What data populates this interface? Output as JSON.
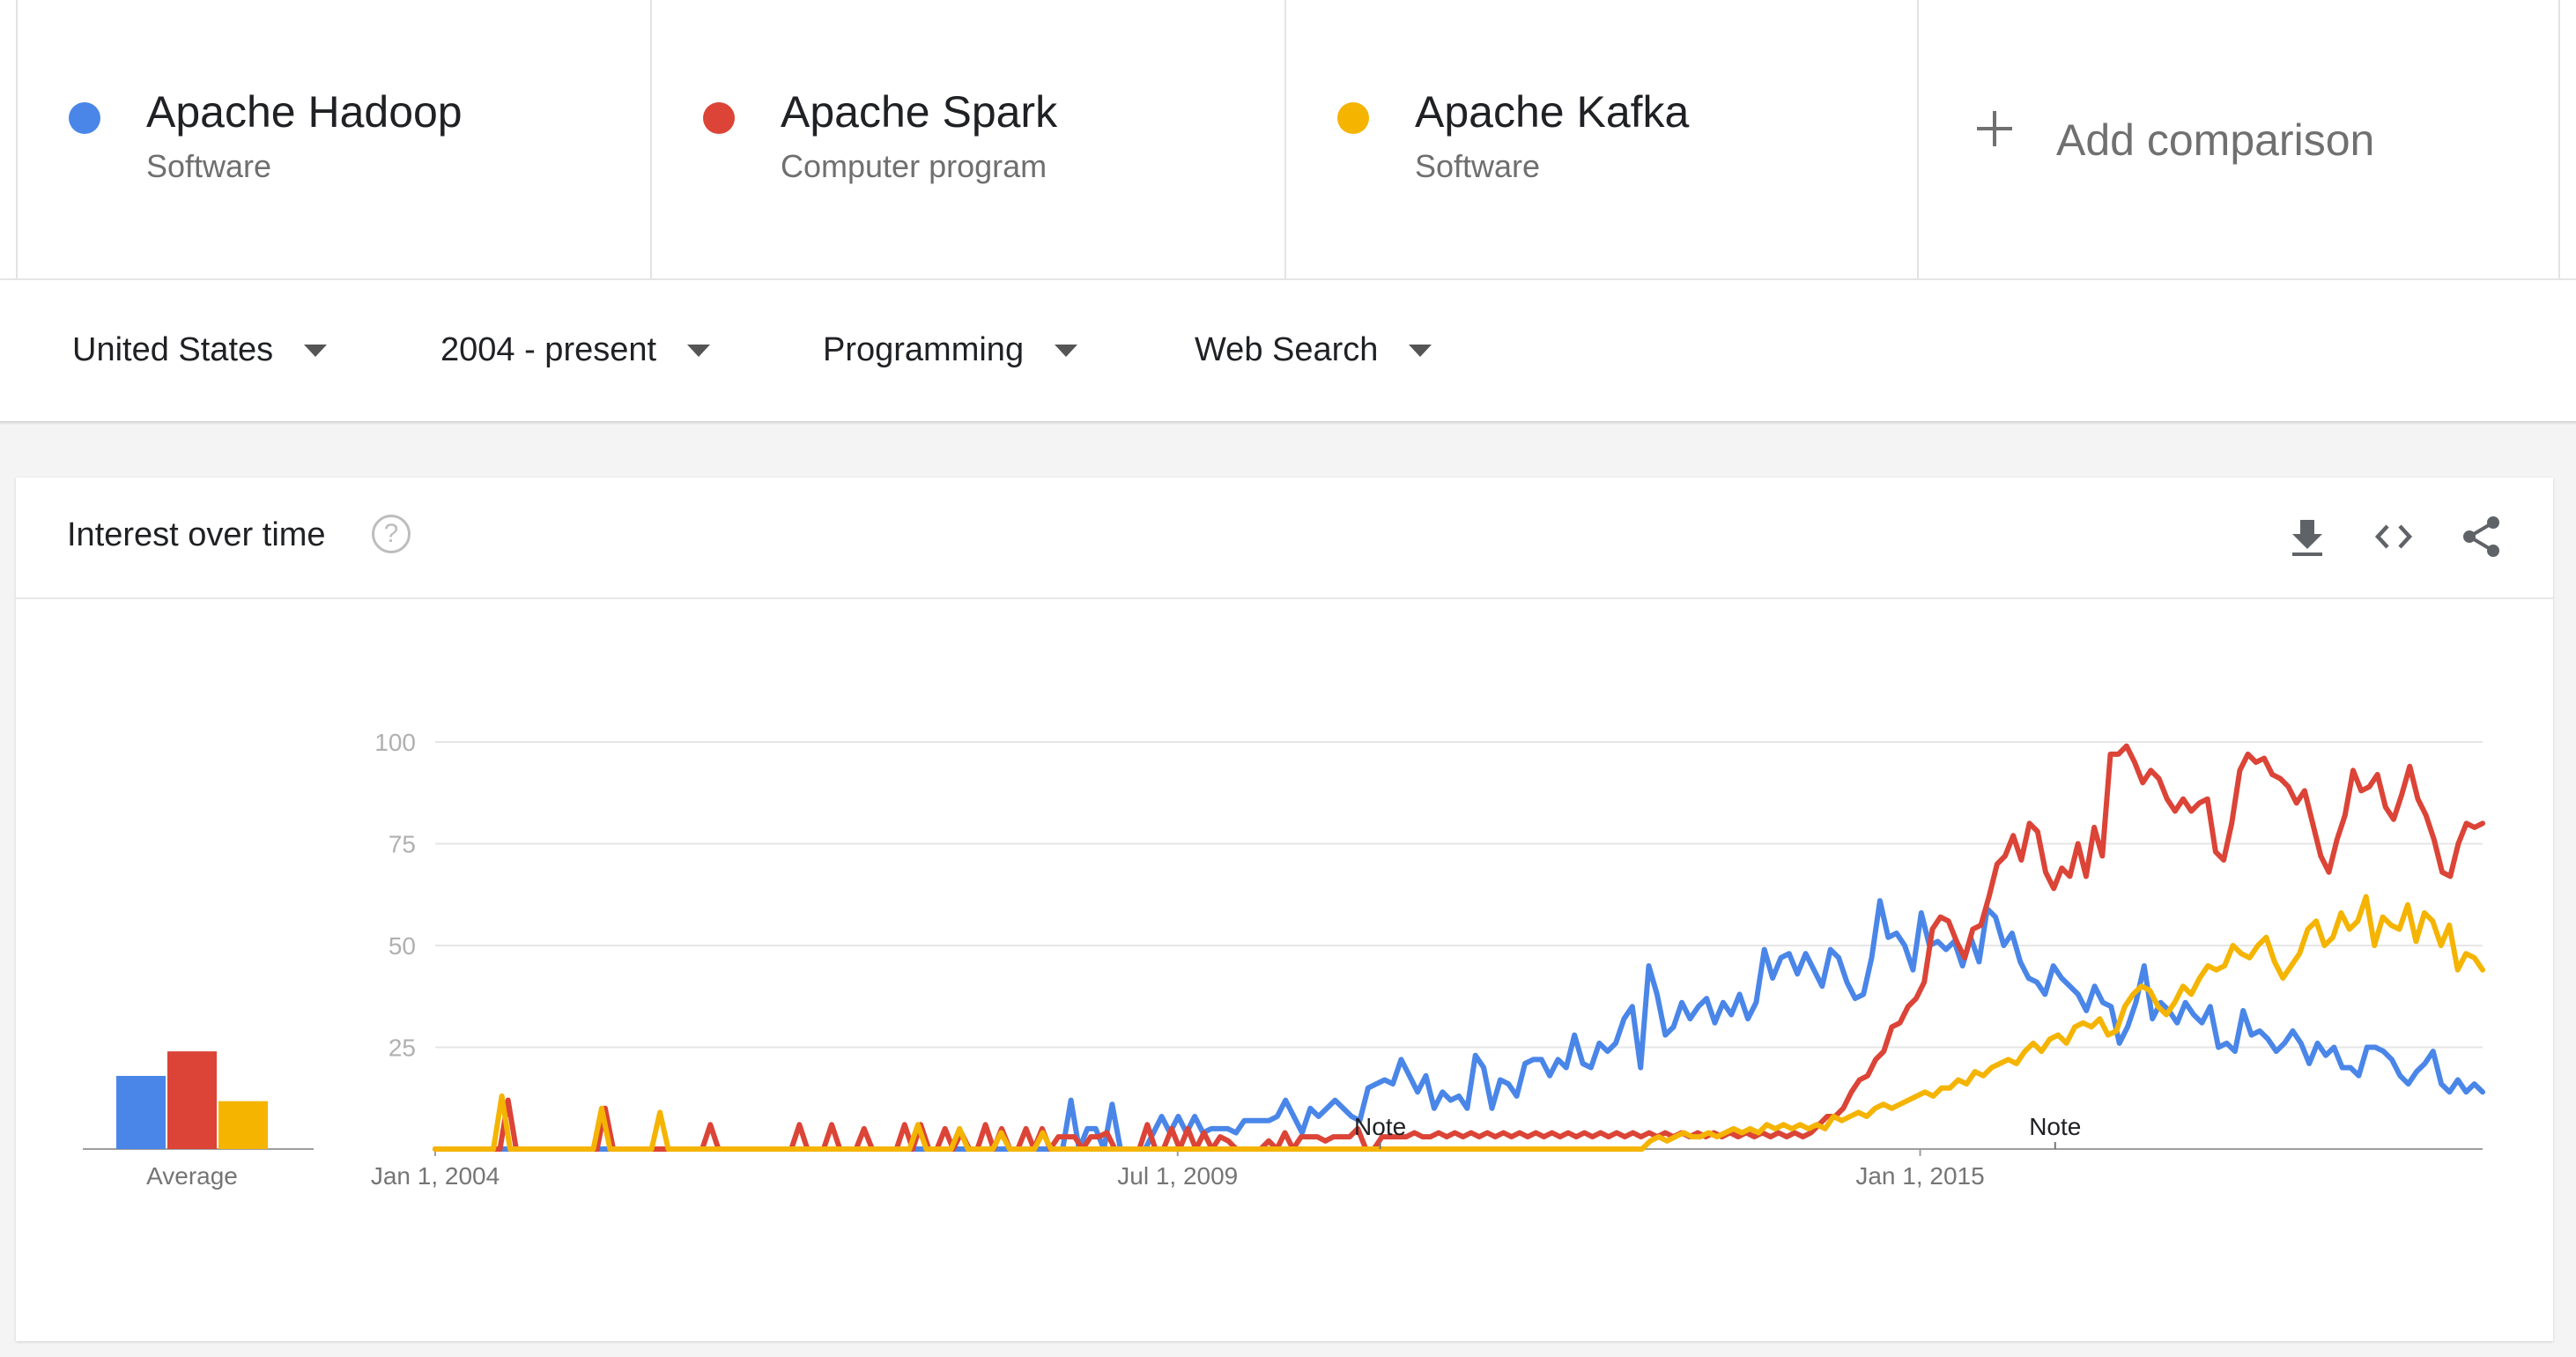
{
  "terms": [
    {
      "name": "Apache Hadoop",
      "type": "Software",
      "color": "#4a86e8"
    },
    {
      "name": "Apache Spark",
      "type": "Computer program",
      "color": "#db4437"
    },
    {
      "name": "Apache Kafka",
      "type": "Software",
      "color": "#f4b400"
    }
  ],
  "add_comparison": {
    "label": "Add comparison"
  },
  "filters": {
    "region": "United States",
    "time_range": "2004 - present",
    "category": "Programming",
    "search_type": "Web Search"
  },
  "card": {
    "title": "Interest over time",
    "help_icon": "help-circle-icon",
    "actions": [
      "download-icon",
      "embed-code-icon",
      "share-icon"
    ]
  },
  "chart_data": {
    "type": "line",
    "x_start": "2004-01",
    "x_end": "2019-03",
    "x_ticks": [
      "Jan 1, 2004",
      "Jul 1, 2009",
      "Jan 1, 2015"
    ],
    "y_ticks": [
      25,
      50,
      75,
      100
    ],
    "ylim": [
      0,
      100
    ],
    "grid": true,
    "notes": [
      {
        "label": "Note",
        "date": "2011-01"
      },
      {
        "label": "Note",
        "date": "2016-01"
      }
    ],
    "series": [
      {
        "name": "Apache Hadoop",
        "color": "#4a86e8",
        "values": [
          0,
          0,
          0,
          0,
          0,
          0,
          0,
          0,
          0,
          0,
          0,
          0,
          0,
          0,
          0,
          0,
          0,
          0,
          0,
          0,
          0,
          0,
          0,
          0,
          0,
          0,
          0,
          0,
          0,
          0,
          0,
          0,
          0,
          0,
          0,
          0,
          0,
          0,
          0,
          0,
          0,
          0,
          0,
          0,
          0,
          0,
          0,
          0,
          0,
          0,
          0,
          0,
          0,
          0,
          0,
          0,
          0,
          0,
          0,
          0,
          0,
          0,
          0,
          0,
          0,
          0,
          0,
          0,
          0,
          0,
          0,
          0,
          0,
          0,
          0,
          0,
          0,
          12,
          0,
          5,
          5,
          0,
          11,
          0,
          0,
          0,
          0,
          4,
          8,
          4,
          8,
          4,
          8,
          4,
          5,
          5,
          5,
          4,
          7,
          7,
          7,
          7,
          8,
          12,
          8,
          4,
          10,
          8,
          10,
          12,
          10,
          8,
          7,
          15,
          16,
          17,
          16,
          22,
          18,
          14,
          18,
          10,
          14,
          12,
          13,
          10,
          23,
          20,
          10,
          17,
          16,
          13,
          21,
          22,
          22,
          18,
          22,
          20,
          28,
          21,
          20,
          26,
          24,
          26,
          32,
          35,
          20,
          45,
          38,
          28,
          30,
          36,
          32,
          35,
          37,
          31,
          36,
          33,
          38,
          32,
          36,
          49,
          42,
          47,
          48,
          43,
          48,
          44,
          40,
          49,
          47,
          41,
          37,
          38,
          47,
          61,
          52,
          53,
          50,
          44,
          58,
          50,
          51,
          49,
          51,
          45,
          52,
          46,
          59,
          57,
          50,
          53,
          46,
          42,
          41,
          38,
          45,
          42,
          40,
          38,
          34,
          40,
          36,
          35,
          26,
          30,
          36,
          45,
          32,
          36,
          34,
          31,
          36,
          33,
          31,
          35,
          25,
          26,
          24,
          34,
          28,
          29,
          27,
          24,
          26,
          29,
          26,
          21,
          26,
          23,
          25,
          20,
          20,
          18,
          25,
          25,
          24,
          22,
          18,
          16,
          19,
          21,
          24,
          16,
          14,
          17,
          14,
          16,
          14
        ]
      },
      {
        "name": "Apache Spark",
        "color": "#db4437",
        "values": [
          0,
          0,
          0,
          0,
          0,
          0,
          0,
          0,
          0,
          12,
          0,
          0,
          0,
          0,
          0,
          0,
          0,
          0,
          0,
          0,
          0,
          10,
          0,
          0,
          0,
          0,
          0,
          0,
          0,
          0,
          0,
          0,
          0,
          0,
          6,
          0,
          0,
          0,
          0,
          0,
          0,
          0,
          0,
          0,
          0,
          6,
          0,
          0,
          0,
          6,
          0,
          0,
          0,
          5,
          0,
          0,
          0,
          0,
          6,
          0,
          6,
          0,
          0,
          5,
          0,
          4,
          0,
          0,
          6,
          0,
          5,
          0,
          0,
          5,
          0,
          5,
          0,
          3,
          3,
          3,
          0,
          3,
          3,
          4,
          0,
          0,
          0,
          0,
          6,
          0,
          0,
          5,
          0,
          5,
          0,
          4,
          0,
          3,
          2,
          0,
          0,
          0,
          0,
          2,
          0,
          4,
          0,
          3,
          3,
          3,
          2,
          3,
          3,
          3,
          5,
          0,
          0,
          3,
          3,
          3,
          3,
          4,
          3,
          3,
          4,
          3,
          4,
          3,
          4,
          3,
          4,
          3,
          4,
          3,
          4,
          3,
          4,
          3,
          4,
          3,
          4,
          3,
          4,
          3,
          4,
          3,
          4,
          3,
          4,
          3,
          4,
          3,
          4,
          3,
          4,
          3,
          4,
          3,
          4,
          3,
          4,
          3,
          4,
          3,
          4,
          3,
          4,
          3,
          4,
          3,
          4,
          6,
          8,
          8,
          10,
          14,
          17,
          18,
          22,
          24,
          30,
          31,
          35,
          37,
          41,
          54,
          57,
          56,
          51,
          47,
          54,
          55,
          62,
          70,
          72,
          77,
          71,
          80,
          78,
          68,
          64,
          69,
          67,
          75,
          67,
          79,
          72,
          97,
          97,
          99,
          95,
          90,
          93,
          91,
          86,
          83,
          86,
          83,
          85,
          86,
          73,
          71,
          80,
          93,
          97,
          95,
          96,
          92,
          91,
          89,
          85,
          88,
          80,
          72,
          68,
          76,
          82,
          93,
          88,
          89,
          92,
          84,
          81,
          87,
          94,
          86,
          82,
          76,
          68,
          67,
          75,
          80,
          79,
          80
        ]
      },
      {
        "name": "Apache Kafka",
        "color": "#f4b400",
        "values": [
          0,
          0,
          0,
          0,
          0,
          0,
          0,
          0,
          13,
          0,
          0,
          0,
          0,
          0,
          0,
          0,
          0,
          0,
          0,
          0,
          10,
          0,
          0,
          0,
          0,
          0,
          0,
          9,
          0,
          0,
          0,
          0,
          0,
          0,
          0,
          0,
          0,
          0,
          0,
          0,
          0,
          0,
          0,
          0,
          0,
          0,
          0,
          0,
          0,
          0,
          0,
          0,
          0,
          0,
          0,
          0,
          0,
          0,
          6,
          0,
          0,
          0,
          0,
          5,
          0,
          0,
          0,
          0,
          4,
          0,
          0,
          0,
          0,
          4,
          0,
          0,
          0,
          0,
          0,
          0,
          0,
          0,
          0,
          0,
          0,
          0,
          0,
          0,
          0,
          0,
          0,
          0,
          0,
          0,
          0,
          0,
          0,
          0,
          0,
          0,
          0,
          0,
          0,
          0,
          0,
          0,
          0,
          0,
          0,
          0,
          0,
          0,
          0,
          0,
          0,
          0,
          0,
          0,
          0,
          0,
          0,
          0,
          0,
          0,
          0,
          0,
          0,
          0,
          0,
          0,
          0,
          0,
          0,
          0,
          0,
          0,
          0,
          0,
          0,
          0,
          0,
          0,
          0,
          0,
          0,
          0,
          2,
          3,
          2,
          3,
          4,
          3,
          3,
          4,
          3,
          4,
          5,
          4,
          5,
          4,
          6,
          5,
          6,
          5,
          6,
          5,
          6,
          5,
          8,
          7,
          8,
          9,
          8,
          10,
          11,
          10,
          11,
          12,
          13,
          14,
          13,
          15,
          15,
          17,
          16,
          19,
          18,
          20,
          21,
          22,
          21,
          24,
          26,
          24,
          27,
          28,
          26,
          30,
          31,
          30,
          32,
          28,
          29,
          35,
          38,
          40,
          39,
          35,
          33,
          36,
          40,
          38,
          42,
          45,
          44,
          45,
          50,
          48,
          47,
          50,
          52,
          46,
          42,
          45,
          48,
          54,
          56,
          50,
          52,
          58,
          54,
          56,
          62,
          50,
          57,
          55,
          54,
          60,
          51,
          58,
          56,
          50,
          55,
          44,
          48,
          47,
          44
        ]
      }
    ]
  }
}
